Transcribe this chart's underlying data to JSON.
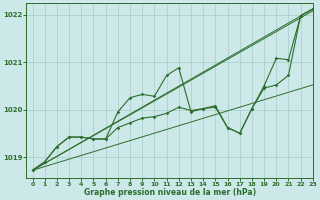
{
  "title": "Graphe pression niveau de la mer (hPa)",
  "bg_color": "#cce8e8",
  "grid_color": "#aacccc",
  "line_color": "#2d6e2d",
  "xlim": [
    -0.5,
    23
  ],
  "ylim": [
    1018.55,
    1022.25
  ],
  "yticks": [
    1019,
    1020,
    1021,
    1022
  ],
  "xticks": [
    0,
    1,
    2,
    3,
    4,
    5,
    6,
    7,
    8,
    9,
    10,
    11,
    12,
    13,
    14,
    15,
    16,
    17,
    18,
    19,
    20,
    21,
    22,
    23
  ],
  "series_main": [
    1018.72,
    1018.9,
    1019.22,
    1019.42,
    1019.42,
    1019.38,
    1019.38,
    1019.95,
    1020.25,
    1020.32,
    1020.28,
    1020.72,
    1020.88,
    1019.95,
    1020.02,
    1020.08,
    1019.62,
    1019.5,
    1020.02,
    1020.5,
    1021.08,
    1021.05,
    1021.98,
    1022.12
  ],
  "series_low": [
    1018.72,
    1018.9,
    1019.22,
    1019.42,
    1019.42,
    1019.38,
    1019.38,
    1019.62,
    1019.72,
    1019.82,
    1019.85,
    1019.92,
    1020.05,
    1019.98,
    1020.02,
    1020.05,
    1019.62,
    1019.5,
    1020.02,
    1020.45,
    1020.52,
    1020.72,
    1021.98,
    1022.12
  ],
  "straight_lines": [
    {
      "x0": 0,
      "y0": 1018.72,
      "x1": 23,
      "y1": 1022.12
    },
    {
      "x0": 0,
      "y0": 1018.72,
      "x1": 23,
      "y1": 1022.08
    },
    {
      "x0": 0,
      "y0": 1018.72,
      "x1": 23,
      "y1": 1020.52
    }
  ]
}
